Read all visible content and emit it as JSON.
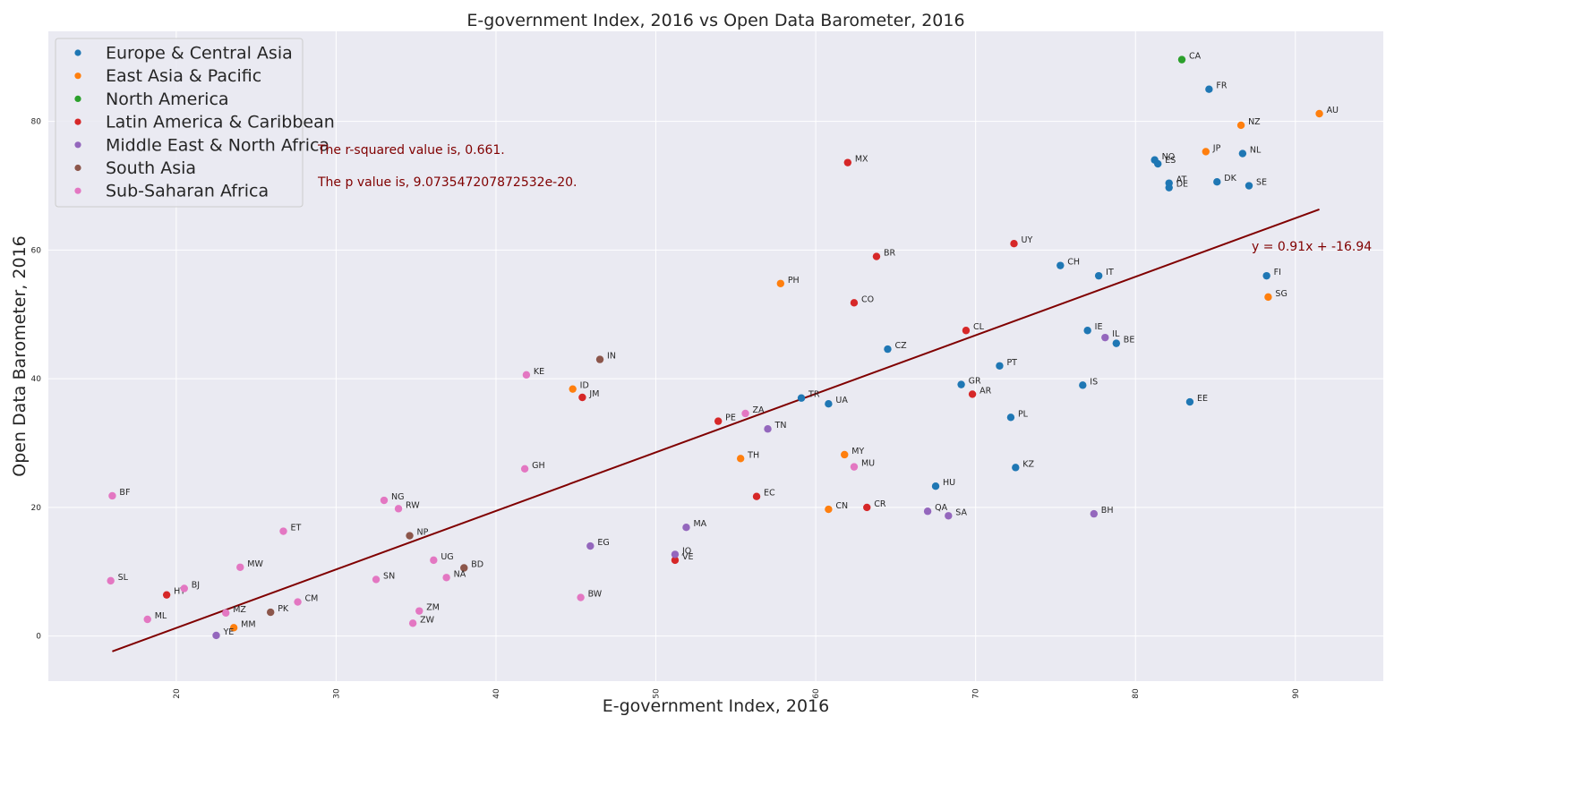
{
  "chart_data": {
    "type": "scatter",
    "title": "E-government Index, 2016 vs Open Data Barometer, 2016",
    "xlabel": "E-government Index, 2016",
    "ylabel": "Open Data Barometer, 2016",
    "xlim": [
      12,
      95.5
    ],
    "ylim": [
      -7,
      94
    ],
    "xticks": [
      20,
      30,
      40,
      50,
      60,
      70,
      80,
      90
    ],
    "yticks": [
      0,
      20,
      40,
      60,
      80
    ],
    "grid": true,
    "legend_position": "top-left",
    "series": [
      {
        "name": "Europe & Central Asia",
        "color": "#1f77b4",
        "points": [
          {
            "label": "FR",
            "x": 84.6,
            "y": 85.0
          },
          {
            "label": "NO",
            "x": 81.2,
            "y": 74.0
          },
          {
            "label": "ES",
            "x": 81.4,
            "y": 73.4
          },
          {
            "label": "NL",
            "x": 86.7,
            "y": 75.0
          },
          {
            "label": "AT",
            "x": 82.1,
            "y": 70.4
          },
          {
            "label": "DE",
            "x": 82.1,
            "y": 69.7
          },
          {
            "label": "DK",
            "x": 85.1,
            "y": 70.6
          },
          {
            "label": "SE",
            "x": 87.1,
            "y": 70.0
          },
          {
            "label": "CH",
            "x": 75.3,
            "y": 57.6
          },
          {
            "label": "IT",
            "x": 77.7,
            "y": 56.0
          },
          {
            "label": "FI",
            "x": 88.2,
            "y": 56.0
          },
          {
            "label": "IE",
            "x": 77.0,
            "y": 47.5
          },
          {
            "label": "BE",
            "x": 78.8,
            "y": 45.5
          },
          {
            "label": "CZ",
            "x": 64.5,
            "y": 44.6
          },
          {
            "label": "PT",
            "x": 71.5,
            "y": 42.0
          },
          {
            "label": "GR",
            "x": 69.1,
            "y": 39.1
          },
          {
            "label": "IS",
            "x": 76.7,
            "y": 39.0
          },
          {
            "label": "EE",
            "x": 83.4,
            "y": 36.4
          },
          {
            "label": "TR",
            "x": 59.1,
            "y": 37.0
          },
          {
            "label": "UA",
            "x": 60.8,
            "y": 36.1
          },
          {
            "label": "PL",
            "x": 72.2,
            "y": 34.0
          },
          {
            "label": "KZ",
            "x": 72.5,
            "y": 26.2
          },
          {
            "label": "HU",
            "x": 67.5,
            "y": 23.3
          }
        ]
      },
      {
        "name": "East Asia & Pacific",
        "color": "#ff7f0e",
        "points": [
          {
            "label": "AU",
            "x": 91.5,
            "y": 81.2
          },
          {
            "label": "NZ",
            "x": 86.6,
            "y": 79.4
          },
          {
            "label": "JP",
            "x": 84.4,
            "y": 75.3
          },
          {
            "label": "SG",
            "x": 88.3,
            "y": 52.7
          },
          {
            "label": "PH",
            "x": 57.8,
            "y": 54.8
          },
          {
            "label": "ID",
            "x": 44.8,
            "y": 38.4
          },
          {
            "label": "TH",
            "x": 55.3,
            "y": 27.6
          },
          {
            "label": "MY",
            "x": 61.8,
            "y": 28.2
          },
          {
            "label": "CN",
            "x": 60.8,
            "y": 19.7
          },
          {
            "label": "MM",
            "x": 23.6,
            "y": 1.3
          }
        ]
      },
      {
        "name": "North America",
        "color": "#2ca02c",
        "points": [
          {
            "label": "CA",
            "x": 82.9,
            "y": 89.6
          }
        ]
      },
      {
        "name": "Latin America & Caribbean",
        "color": "#d62728",
        "points": [
          {
            "label": "MX",
            "x": 62.0,
            "y": 73.6
          },
          {
            "label": "UY",
            "x": 72.4,
            "y": 61.0
          },
          {
            "label": "BR",
            "x": 63.8,
            "y": 59.0
          },
          {
            "label": "CO",
            "x": 62.4,
            "y": 51.8
          },
          {
            "label": "CL",
            "x": 69.4,
            "y": 47.5
          },
          {
            "label": "AR",
            "x": 69.8,
            "y": 37.6
          },
          {
            "label": "JM",
            "x": 45.4,
            "y": 37.1
          },
          {
            "label": "PE",
            "x": 53.9,
            "y": 33.4
          },
          {
            "label": "EC",
            "x": 56.3,
            "y": 21.7
          },
          {
            "label": "CR",
            "x": 63.2,
            "y": 20.0
          },
          {
            "label": "VE",
            "x": 51.2,
            "y": 11.8
          },
          {
            "label": "HT",
            "x": 19.4,
            "y": 6.4
          }
        ]
      },
      {
        "name": "Middle East & North Africa",
        "color": "#9467bd",
        "points": [
          {
            "label": "IL",
            "x": 78.1,
            "y": 46.4
          },
          {
            "label": "TN",
            "x": 57.0,
            "y": 32.2
          },
          {
            "label": "QA",
            "x": 67.0,
            "y": 19.4
          },
          {
            "label": "SA",
            "x": 68.3,
            "y": 18.7
          },
          {
            "label": "BH",
            "x": 77.4,
            "y": 19.0
          },
          {
            "label": "MA",
            "x": 51.9,
            "y": 16.9
          },
          {
            "label": "EG",
            "x": 45.9,
            "y": 14.0
          },
          {
            "label": "JO",
            "x": 51.2,
            "y": 12.7
          },
          {
            "label": "YE",
            "x": 22.5,
            "y": 0.1
          }
        ]
      },
      {
        "name": "South Asia",
        "color": "#8c564b",
        "points": [
          {
            "label": "IN",
            "x": 46.5,
            "y": 43.0
          },
          {
            "label": "NP",
            "x": 34.6,
            "y": 15.6
          },
          {
            "label": "BD",
            "x": 38.0,
            "y": 10.6
          },
          {
            "label": "PK",
            "x": 25.9,
            "y": 3.7
          }
        ]
      },
      {
        "name": "Sub-Saharan Africa",
        "color": "#e377c2",
        "points": [
          {
            "label": "KE",
            "x": 41.9,
            "y": 40.6
          },
          {
            "label": "ZA",
            "x": 55.6,
            "y": 34.6
          },
          {
            "label": "MU",
            "x": 62.4,
            "y": 26.3
          },
          {
            "label": "GH",
            "x": 41.8,
            "y": 26.0
          },
          {
            "label": "BF",
            "x": 16.0,
            "y": 21.8
          },
          {
            "label": "NG",
            "x": 33.0,
            "y": 21.1
          },
          {
            "label": "RW",
            "x": 33.9,
            "y": 19.8
          },
          {
            "label": "ET",
            "x": 26.7,
            "y": 16.3
          },
          {
            "label": "UG",
            "x": 36.1,
            "y": 11.8
          },
          {
            "label": "MW",
            "x": 24.0,
            "y": 10.7
          },
          {
            "label": "NA",
            "x": 36.9,
            "y": 9.1
          },
          {
            "label": "SN",
            "x": 32.5,
            "y": 8.8
          },
          {
            "label": "SL",
            "x": 15.9,
            "y": 8.6
          },
          {
            "label": "BJ",
            "x": 20.5,
            "y": 7.4
          },
          {
            "label": "BW",
            "x": 45.3,
            "y": 6.0
          },
          {
            "label": "CM",
            "x": 27.6,
            "y": 5.3
          },
          {
            "label": "ZM",
            "x": 35.2,
            "y": 3.9
          },
          {
            "label": "MZ",
            "x": 23.1,
            "y": 3.6
          },
          {
            "label": "ML",
            "x": 18.2,
            "y": 2.6
          },
          {
            "label": "ZW",
            "x": 34.8,
            "y": 2.0
          }
        ]
      }
    ],
    "regression": {
      "slope": 0.91,
      "intercept": -16.94,
      "x_range": [
        16,
        91.5
      ],
      "color": "#800000",
      "equation": "y = 0.91x + -16.94"
    },
    "annotations": [
      "The r-squared value is, 0.661.",
      "The p value is, 9.073547207872532e-20."
    ]
  }
}
